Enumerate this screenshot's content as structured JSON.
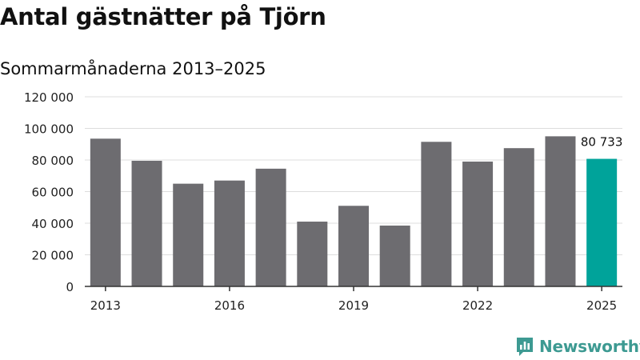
{
  "header": {
    "title": "Antal gästnätter på Tjörn",
    "subtitle": "Sommarmånaderna 2013–2025"
  },
  "brand": {
    "name": "Newsworthy",
    "icon": "newsworthy-logo-icon"
  },
  "colors": {
    "bar": "#6d6c70",
    "highlight": "#00a39a",
    "grid": "#dddddd",
    "axis": "#333333",
    "brand": "#3d9a92"
  },
  "chart_data": {
    "type": "bar",
    "title": "Antal gästnätter på Tjörn",
    "subtitle": "Sommarmånaderna 2013–2025",
    "xlabel": "",
    "ylabel": "",
    "categories": [
      "2013",
      "2014",
      "2015",
      "2016",
      "2017",
      "2018",
      "2019",
      "2020",
      "2021",
      "2022",
      "2023",
      "2024",
      "2025"
    ],
    "values": [
      93500,
      79500,
      65000,
      67000,
      74500,
      41000,
      51000,
      38500,
      91500,
      79000,
      87500,
      95000,
      80733
    ],
    "ylim": [
      0,
      120000
    ],
    "yticks": [
      0,
      20000,
      40000,
      60000,
      80000,
      100000,
      120000
    ],
    "ytick_labels": [
      "0",
      "20 000",
      "40 000",
      "60 000",
      "80 000",
      "100 000",
      "120 000"
    ],
    "xtick_labels": [
      "2013",
      "2016",
      "2019",
      "2022",
      "2025"
    ],
    "highlight_index": 12,
    "data_labels": [
      {
        "index": 12,
        "text": "80 733"
      }
    ],
    "grid": true
  }
}
